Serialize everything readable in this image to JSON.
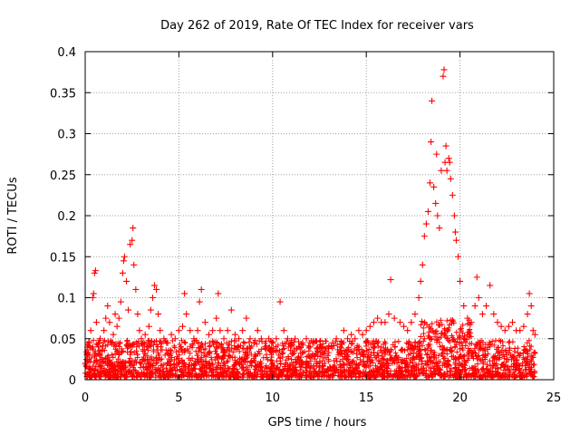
{
  "chart_data": {
    "type": "scatter",
    "title": "Day 262 of 2019, Rate Of TEC Index for receiver vars",
    "xlabel": "GPS time / hours",
    "ylabel": "ROTI / TECUs",
    "xlim": [
      0,
      25
    ],
    "ylim": [
      0,
      0.4
    ],
    "grid": true,
    "marker": "+",
    "color": "#ff0000",
    "xticks": [
      {
        "value": 0,
        "label": "0"
      },
      {
        "value": 5,
        "label": "5"
      },
      {
        "value": 10,
        "label": "10"
      },
      {
        "value": 15,
        "label": "15"
      },
      {
        "value": 20,
        "label": "20"
      },
      {
        "value": 25,
        "label": "25"
      }
    ],
    "yticks": [
      {
        "value": 0,
        "label": "0"
      },
      {
        "value": 0.05,
        "label": "0.05"
      },
      {
        "value": 0.1,
        "label": "0.1"
      },
      {
        "value": 0.15,
        "label": "0.15"
      },
      {
        "value": 0.2,
        "label": "0.2"
      },
      {
        "value": 0.25,
        "label": "0.25"
      },
      {
        "value": 0.3,
        "label": "0.3"
      },
      {
        "value": 0.35,
        "label": "0.35"
      },
      {
        "value": 0.4,
        "label": "0.4"
      }
    ],
    "series": [
      {
        "name": "ROTI",
        "points": [
          [
            0.0,
            0.02
          ],
          [
            0.1,
            0.03
          ],
          [
            0.2,
            0.045
          ],
          [
            0.3,
            0.06
          ],
          [
            0.4,
            0.1
          ],
          [
            0.45,
            0.105
          ],
          [
            0.5,
            0.13
          ],
          [
            0.55,
            0.133
          ],
          [
            0.6,
            0.07
          ],
          [
            0.7,
            0.04
          ],
          [
            0.8,
            0.05
          ],
          [
            0.9,
            0.035
          ],
          [
            1.0,
            0.06
          ],
          [
            1.1,
            0.075
          ],
          [
            1.2,
            0.09
          ],
          [
            1.3,
            0.07
          ],
          [
            1.4,
            0.045
          ],
          [
            1.5,
            0.055
          ],
          [
            1.6,
            0.08
          ],
          [
            1.7,
            0.065
          ],
          [
            1.8,
            0.075
          ],
          [
            1.9,
            0.095
          ],
          [
            2.0,
            0.13
          ],
          [
            2.05,
            0.145
          ],
          [
            2.1,
            0.15
          ],
          [
            2.2,
            0.12
          ],
          [
            2.3,
            0.085
          ],
          [
            2.4,
            0.165
          ],
          [
            2.5,
            0.17
          ],
          [
            2.55,
            0.185
          ],
          [
            2.6,
            0.14
          ],
          [
            2.7,
            0.11
          ],
          [
            2.8,
            0.08
          ],
          [
            2.9,
            0.06
          ],
          [
            3.0,
            0.05
          ],
          [
            3.1,
            0.045
          ],
          [
            3.2,
            0.055
          ],
          [
            3.3,
            0.04
          ],
          [
            3.4,
            0.065
          ],
          [
            3.5,
            0.085
          ],
          [
            3.6,
            0.1
          ],
          [
            3.7,
            0.115
          ],
          [
            3.8,
            0.11
          ],
          [
            3.9,
            0.08
          ],
          [
            4.0,
            0.06
          ],
          [
            4.2,
            0.05
          ],
          [
            4.4,
            0.045
          ],
          [
            4.6,
            0.055
          ],
          [
            4.8,
            0.05
          ],
          [
            5.0,
            0.06
          ],
          [
            5.2,
            0.065
          ],
          [
            5.3,
            0.105
          ],
          [
            5.4,
            0.08
          ],
          [
            5.6,
            0.06
          ],
          [
            5.8,
            0.05
          ],
          [
            6.0,
            0.06
          ],
          [
            6.1,
            0.095
          ],
          [
            6.2,
            0.11
          ],
          [
            6.4,
            0.07
          ],
          [
            6.6,
            0.055
          ],
          [
            6.8,
            0.06
          ],
          [
            7.0,
            0.075
          ],
          [
            7.1,
            0.105
          ],
          [
            7.2,
            0.06
          ],
          [
            7.4,
            0.05
          ],
          [
            7.6,
            0.06
          ],
          [
            7.8,
            0.085
          ],
          [
            8.0,
            0.055
          ],
          [
            8.2,
            0.05
          ],
          [
            8.4,
            0.06
          ],
          [
            8.6,
            0.075
          ],
          [
            8.8,
            0.05
          ],
          [
            9.0,
            0.045
          ],
          [
            9.2,
            0.06
          ],
          [
            9.4,
            0.05
          ],
          [
            9.6,
            0.04
          ],
          [
            9.8,
            0.05
          ],
          [
            10.0,
            0.045
          ],
          [
            10.2,
            0.05
          ],
          [
            10.4,
            0.095
          ],
          [
            10.6,
            0.06
          ],
          [
            10.8,
            0.05
          ],
          [
            11.0,
            0.045
          ],
          [
            11.2,
            0.05
          ],
          [
            11.4,
            0.04
          ],
          [
            11.6,
            0.045
          ],
          [
            11.8,
            0.05
          ],
          [
            12.0,
            0.04
          ],
          [
            12.2,
            0.045
          ],
          [
            12.4,
            0.035
          ],
          [
            12.6,
            0.04
          ],
          [
            12.8,
            0.035
          ],
          [
            13.0,
            0.04
          ],
          [
            13.2,
            0.045
          ],
          [
            13.4,
            0.05
          ],
          [
            13.6,
            0.04
          ],
          [
            13.8,
            0.06
          ],
          [
            14.0,
            0.05
          ],
          [
            14.2,
            0.055
          ],
          [
            14.4,
            0.05
          ],
          [
            14.6,
            0.06
          ],
          [
            14.8,
            0.055
          ],
          [
            15.0,
            0.06
          ],
          [
            15.2,
            0.065
          ],
          [
            15.4,
            0.07
          ],
          [
            15.6,
            0.075
          ],
          [
            15.8,
            0.07
          ],
          [
            16.0,
            0.07
          ],
          [
            16.2,
            0.08
          ],
          [
            16.3,
            0.122
          ],
          [
            16.5,
            0.075
          ],
          [
            16.8,
            0.07
          ],
          [
            17.0,
            0.065
          ],
          [
            17.2,
            0.06
          ],
          [
            17.4,
            0.07
          ],
          [
            17.6,
            0.08
          ],
          [
            17.8,
            0.1
          ],
          [
            17.9,
            0.12
          ],
          [
            18.0,
            0.14
          ],
          [
            18.1,
            0.175
          ],
          [
            18.2,
            0.19
          ],
          [
            18.3,
            0.205
          ],
          [
            18.4,
            0.24
          ],
          [
            18.45,
            0.29
          ],
          [
            18.5,
            0.34
          ],
          [
            18.6,
            0.235
          ],
          [
            18.7,
            0.215
          ],
          [
            18.75,
            0.275
          ],
          [
            18.8,
            0.2
          ],
          [
            18.9,
            0.185
          ],
          [
            19.0,
            0.255
          ],
          [
            19.1,
            0.37
          ],
          [
            19.15,
            0.378
          ],
          [
            19.2,
            0.265
          ],
          [
            19.25,
            0.285
          ],
          [
            19.3,
            0.255
          ],
          [
            19.4,
            0.27
          ],
          [
            19.45,
            0.265
          ],
          [
            19.5,
            0.245
          ],
          [
            19.6,
            0.225
          ],
          [
            19.7,
            0.2
          ],
          [
            19.75,
            0.18
          ],
          [
            19.8,
            0.17
          ],
          [
            19.9,
            0.15
          ],
          [
            20.0,
            0.12
          ],
          [
            20.2,
            0.09
          ],
          [
            20.4,
            0.075
          ],
          [
            20.6,
            0.07
          ],
          [
            20.8,
            0.09
          ],
          [
            20.9,
            0.125
          ],
          [
            21.0,
            0.1
          ],
          [
            21.2,
            0.08
          ],
          [
            21.4,
            0.09
          ],
          [
            21.6,
            0.115
          ],
          [
            21.8,
            0.08
          ],
          [
            22.0,
            0.07
          ],
          [
            22.2,
            0.065
          ],
          [
            22.4,
            0.06
          ],
          [
            22.6,
            0.065
          ],
          [
            22.8,
            0.07
          ],
          [
            23.0,
            0.06
          ],
          [
            23.2,
            0.06
          ],
          [
            23.4,
            0.065
          ],
          [
            23.6,
            0.08
          ],
          [
            23.7,
            0.105
          ],
          [
            23.8,
            0.09
          ],
          [
            23.9,
            0.06
          ],
          [
            24.0,
            0.055
          ]
        ]
      }
    ]
  }
}
